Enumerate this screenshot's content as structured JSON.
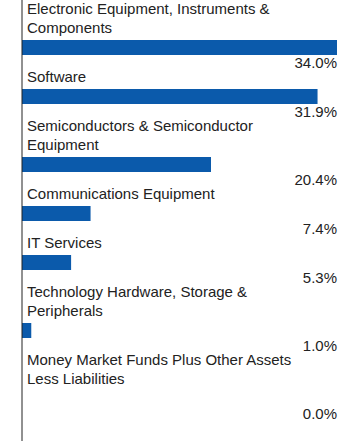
{
  "chart_data": {
    "type": "bar",
    "orientation": "horizontal",
    "categories": [
      "Electronic Equipment, Instruments & Components",
      "Software",
      "Semiconductors & Semiconductor Equipment",
      "Communications Equipment",
      "IT Services",
      "Technology Hardware, Storage & Peripherals",
      "Money Market Funds Plus Other Assets Less Liabilities"
    ],
    "values": [
      34.0,
      31.9,
      20.4,
      7.4,
      5.3,
      1.0,
      0.0
    ],
    "value_labels": [
      "34.0%",
      "31.9%",
      "20.4%",
      "7.4%",
      "5.3%",
      "1.0%",
      "0.0%"
    ],
    "color": "#0b5aab",
    "xlim": [
      0,
      34
    ],
    "data_labels": true,
    "tick_labels": false,
    "grid": false
  }
}
